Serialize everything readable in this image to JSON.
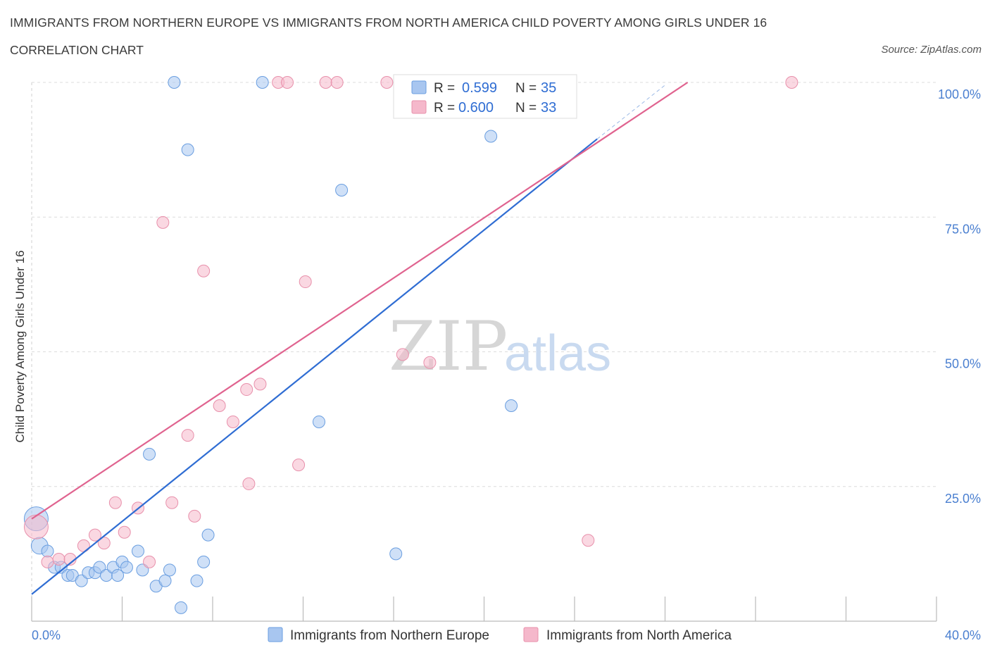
{
  "title": "IMMIGRANTS FROM NORTHERN EUROPE VS IMMIGRANTS FROM NORTH AMERICA CHILD POVERTY AMONG GIRLS UNDER 16",
  "subtitle": "CORRELATION CHART",
  "source": "Source: ZipAtlas.com",
  "watermark": {
    "zip": "ZIP",
    "atlas": "atlas"
  },
  "stats": [
    {
      "r_label": "R =",
      "r": "0.599",
      "n_label": "N =",
      "n": "35",
      "color": "#a8c6f0"
    },
    {
      "r_label": "R =",
      "r": "0.600",
      "n_label": "N =",
      "n": "33",
      "color": "#f5b8cb"
    }
  ],
  "chart_data": {
    "type": "scatter",
    "title": "IMMIGRANTS FROM NORTHERN EUROPE VS IMMIGRANTS FROM NORTH AMERICA CHILD POVERTY AMONG GIRLS UNDER 16",
    "xlabel": "",
    "ylabel": "Child Poverty Among Girls Under 16",
    "xlim": [
      0,
      40
    ],
    "ylim": [
      0,
      100
    ],
    "x_tick_labels": [
      "0.0%",
      "40.0%"
    ],
    "y_tick_labels": [
      "100.0%",
      "75.0%",
      "50.0%",
      "25.0%"
    ],
    "y_ticks": [
      100,
      75,
      50,
      25
    ],
    "grid": true,
    "legend_position": "bottom",
    "series": [
      {
        "name": "Immigrants from Northern Europe",
        "color": "#a8c6f0",
        "stroke": "#6a9ee0",
        "line_color": "#2f6dd3",
        "trend": {
          "x": [
            0,
            25
          ],
          "y": [
            5.0,
            89.5
          ]
        },
        "trend_ext": {
          "x": [
            25,
            28
          ],
          "y": [
            89.5,
            99.5
          ]
        },
        "points": [
          {
            "x": 0.2,
            "y": 19,
            "s": 2
          },
          {
            "x": 0.35,
            "y": 14,
            "s": 1.4
          },
          {
            "x": 0.7,
            "y": 13
          },
          {
            "x": 1.0,
            "y": 10
          },
          {
            "x": 1.3,
            "y": 10
          },
          {
            "x": 1.6,
            "y": 8.5
          },
          {
            "x": 1.8,
            "y": 8.5
          },
          {
            "x": 2.2,
            "y": 7.5
          },
          {
            "x": 2.5,
            "y": 9
          },
          {
            "x": 2.8,
            "y": 9
          },
          {
            "x": 3.0,
            "y": 10
          },
          {
            "x": 3.3,
            "y": 8.5
          },
          {
            "x": 3.6,
            "y": 10
          },
          {
            "x": 3.8,
            "y": 8.5
          },
          {
            "x": 4.0,
            "y": 11
          },
          {
            "x": 4.2,
            "y": 10
          },
          {
            "x": 4.7,
            "y": 13
          },
          {
            "x": 4.9,
            "y": 9.5
          },
          {
            "x": 5.2,
            "y": 31
          },
          {
            "x": 5.5,
            "y": 6.5
          },
          {
            "x": 5.9,
            "y": 7.5
          },
          {
            "x": 6.1,
            "y": 9.5
          },
          {
            "x": 6.3,
            "y": 100
          },
          {
            "x": 6.6,
            "y": 2.5
          },
          {
            "x": 6.9,
            "y": 87.5
          },
          {
            "x": 7.3,
            "y": 7.5
          },
          {
            "x": 7.6,
            "y": 11
          },
          {
            "x": 7.8,
            "y": 16
          },
          {
            "x": 10.2,
            "y": 100
          },
          {
            "x": 12.7,
            "y": 37
          },
          {
            "x": 13.7,
            "y": 80
          },
          {
            "x": 16.1,
            "y": 12.5
          },
          {
            "x": 18.3,
            "y": 100
          },
          {
            "x": 20.3,
            "y": 90
          },
          {
            "x": 21.2,
            "y": 40
          }
        ]
      },
      {
        "name": "Immigrants from North America",
        "color": "#f5b8cb",
        "stroke": "#e890ab",
        "line_color": "#e0638f",
        "trend": {
          "x": [
            0,
            29
          ],
          "y": [
            19.0,
            100.0
          ]
        },
        "points": [
          {
            "x": 0.2,
            "y": 17.5,
            "s": 2
          },
          {
            "x": 0.7,
            "y": 11
          },
          {
            "x": 1.2,
            "y": 11.5
          },
          {
            "x": 1.7,
            "y": 11.5
          },
          {
            "x": 2.3,
            "y": 14
          },
          {
            "x": 2.8,
            "y": 16
          },
          {
            "x": 3.2,
            "y": 14.5
          },
          {
            "x": 3.7,
            "y": 22
          },
          {
            "x": 4.1,
            "y": 16.5
          },
          {
            "x": 4.7,
            "y": 21
          },
          {
            "x": 5.2,
            "y": 11
          },
          {
            "x": 6.2,
            "y": 22
          },
          {
            "x": 5.8,
            "y": 74
          },
          {
            "x": 6.9,
            "y": 34.5
          },
          {
            "x": 7.2,
            "y": 19.5
          },
          {
            "x": 7.6,
            "y": 65
          },
          {
            "x": 8.3,
            "y": 40
          },
          {
            "x": 8.9,
            "y": 37
          },
          {
            "x": 9.5,
            "y": 43
          },
          {
            "x": 9.6,
            "y": 25.5
          },
          {
            "x": 10.1,
            "y": 44
          },
          {
            "x": 10.9,
            "y": 100
          },
          {
            "x": 11.3,
            "y": 100
          },
          {
            "x": 11.8,
            "y": 29
          },
          {
            "x": 12.1,
            "y": 63
          },
          {
            "x": 13.0,
            "y": 100
          },
          {
            "x": 13.5,
            "y": 100
          },
          {
            "x": 15.7,
            "y": 100
          },
          {
            "x": 16.4,
            "y": 49.5
          },
          {
            "x": 17.4,
            "y": 100
          },
          {
            "x": 17.6,
            "y": 48
          },
          {
            "x": 24.6,
            "y": 15
          },
          {
            "x": 33.6,
            "y": 100
          }
        ]
      }
    ]
  }
}
